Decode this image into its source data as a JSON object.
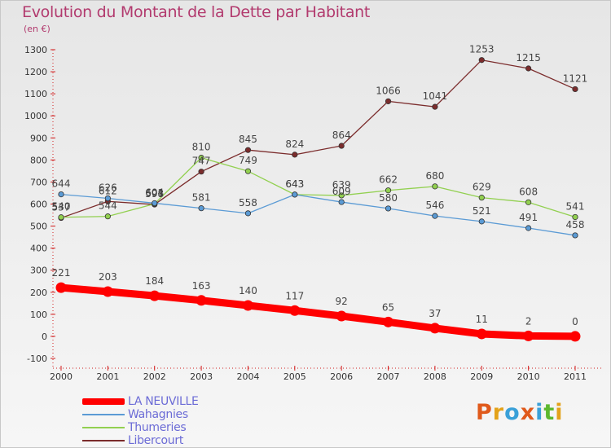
{
  "header": {
    "title": "Evolution du Montant de la Dette par Habitant",
    "unit": "(en €)"
  },
  "brand": {
    "text": "Proxiti",
    "colors": [
      "#e05a1c",
      "#e3a21a",
      "#3aa0d8",
      "#e05a1c",
      "#3aa0d8",
      "#5cb82e",
      "#e3a21a"
    ]
  },
  "chart_data": {
    "type": "line",
    "title": "Evolution du Montant de la Dette par Habitant",
    "subtitle": "(en €)",
    "categories": [
      "2000",
      "2001",
      "2002",
      "2003",
      "2004",
      "2005",
      "2006",
      "2007",
      "2008",
      "2009",
      "2010",
      "2011"
    ],
    "yticks": [
      "-100",
      "0",
      "100",
      "200",
      "300",
      "400",
      "500",
      "600",
      "700",
      "800",
      "900",
      "1000",
      "1100",
      "1200",
      "1300"
    ],
    "ylim": [
      -100,
      1300
    ],
    "grid": false,
    "legend_position": "bottom-left",
    "series": [
      {
        "name": "LA NEUVILLE",
        "color": "#ff0000",
        "values": [
          221,
          203,
          184,
          163,
          140,
          117,
          92,
          65,
          37,
          11,
          2,
          0
        ],
        "labels": [
          "221",
          "203",
          "184",
          "163",
          "140",
          "117",
          "92",
          "65",
          "37",
          "11",
          "2",
          "0"
        ]
      },
      {
        "name": "Wahagnies",
        "color": "#5b9bd5",
        "values": [
          644,
          626,
          604,
          581,
          558,
          643,
          609,
          580,
          546,
          521,
          491,
          458
        ],
        "labels": [
          "644",
          "626",
          "604",
          "581",
          "558",
          "643",
          "609",
          "580",
          "546",
          "521",
          "491",
          "458"
        ]
      },
      {
        "name": "Thumeries",
        "color": "#92d050",
        "values": [
          540,
          544,
          601,
          810,
          749,
          643,
          639,
          662,
          680,
          629,
          608,
          541
        ],
        "labels": [
          "540",
          "544",
          "601",
          "810",
          "749",
          "643",
          "639",
          "662",
          "680",
          "629",
          "608",
          "541"
        ]
      },
      {
        "name": "Libercourt",
        "color": "#7b2c2c",
        "values": [
          537,
          612,
          598,
          747,
          845,
          824,
          864,
          1066,
          1041,
          1253,
          1215,
          1121
        ],
        "labels": [
          "537",
          "612",
          "598",
          "747",
          "845",
          "824",
          "864",
          "1066",
          "1041",
          "1253",
          "1215",
          "1121"
        ]
      }
    ]
  }
}
